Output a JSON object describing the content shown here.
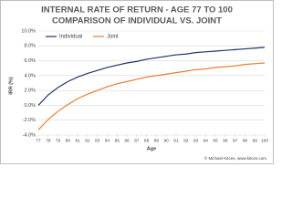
{
  "chart_data": {
    "type": "line",
    "title": [
      "INTERNAL RATE OF RETURN - AGE 77 TO 100",
      "COMPARISON OF INDIVIDUAL VS. JOINT"
    ],
    "xlabel": "Age",
    "ylabel": "IRR (%)",
    "footer": "© Michael Kitces, www.kitces.com",
    "x": [
      77,
      78,
      79,
      80,
      81,
      82,
      83,
      84,
      85,
      86,
      87,
      88,
      89,
      90,
      91,
      92,
      93,
      94,
      95,
      96,
      97,
      98,
      99,
      100
    ],
    "xlim": [
      77,
      100
    ],
    "xticks": [
      77,
      78,
      79,
      80,
      81,
      82,
      83,
      84,
      85,
      86,
      87,
      88,
      89,
      90,
      91,
      92,
      93,
      94,
      95,
      96,
      97,
      98,
      99,
      100
    ],
    "ylim": [
      -4,
      10
    ],
    "yticks": [
      {
        "value": -4,
        "label": "-4.0%"
      },
      {
        "value": -2,
        "label": "-2.0%"
      },
      {
        "value": 0,
        "label": "0.0%"
      },
      {
        "value": 2,
        "label": "2.0%"
      },
      {
        "value": 4,
        "label": "4.0%"
      },
      {
        "value": 6,
        "label": "6.0%"
      },
      {
        "value": 8,
        "label": "8.0%"
      },
      {
        "value": 10,
        "label": "10.0%"
      }
    ],
    "grid": true,
    "legend": "top-left",
    "series": [
      {
        "name": "Individual",
        "color": "#1f3864",
        "values": [
          0.0,
          1.4,
          2.4,
          3.2,
          3.8,
          4.3,
          4.7,
          5.1,
          5.4,
          5.7,
          5.9,
          6.2,
          6.4,
          6.6,
          6.8,
          6.9,
          7.1,
          7.2,
          7.3,
          7.4,
          7.5,
          7.6,
          7.7,
          7.8
        ]
      },
      {
        "name": "Joint",
        "color": "#ed7d31",
        "values": [
          -3.3,
          -1.9,
          -0.8,
          0.1,
          0.9,
          1.5,
          2.0,
          2.5,
          2.9,
          3.2,
          3.5,
          3.8,
          4.0,
          4.2,
          4.4,
          4.6,
          4.8,
          4.9,
          5.1,
          5.2,
          5.3,
          5.5,
          5.6,
          5.7
        ]
      }
    ]
  }
}
